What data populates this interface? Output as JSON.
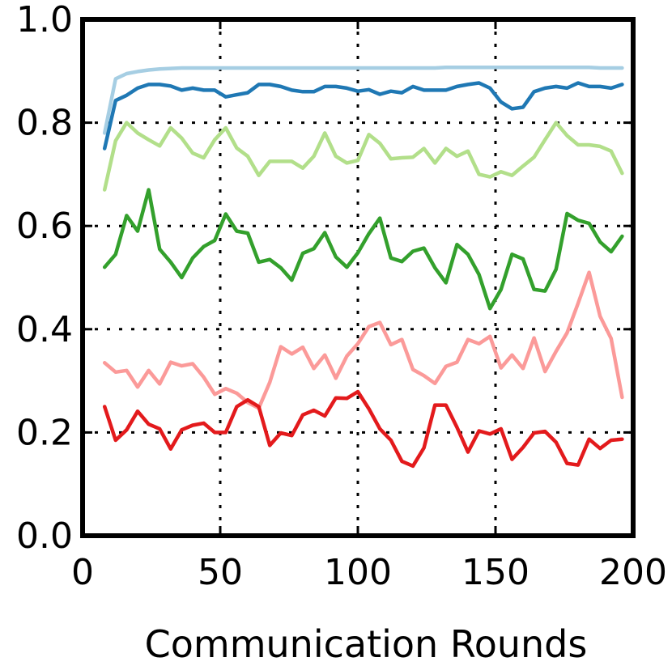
{
  "chart_data": {
    "type": "line",
    "title": "",
    "xlabel": "Communication Rounds",
    "ylabel": "",
    "xlim": [
      0,
      200
    ],
    "ylim": [
      0.0,
      1.0
    ],
    "x_ticks": [
      0,
      50,
      100,
      150,
      200
    ],
    "x_tick_labels": [
      "0",
      "50",
      "100",
      "150",
      "200"
    ],
    "y_ticks": [
      0.0,
      0.2,
      0.4,
      0.6,
      0.8,
      1.0
    ],
    "y_tick_labels": [
      "0.0",
      "0.2",
      "0.4",
      "0.6",
      "0.8",
      "1.0"
    ],
    "grid": true,
    "legend": "none",
    "x": [
      8,
      12,
      16,
      20,
      24,
      28,
      32,
      36,
      40,
      44,
      48,
      52,
      56,
      60,
      64,
      68,
      72,
      76,
      80,
      84,
      88,
      92,
      96,
      100,
      104,
      108,
      112,
      116,
      120,
      124,
      128,
      132,
      136,
      140,
      144,
      148,
      152,
      156,
      160,
      164,
      168,
      172,
      176,
      180,
      184,
      188,
      192,
      196
    ],
    "series": [
      {
        "color": "#a6cee3",
        "values": [
          0.78,
          0.885,
          0.895,
          0.899,
          0.902,
          0.904,
          0.905,
          0.906,
          0.906,
          0.906,
          0.906,
          0.906,
          0.906,
          0.906,
          0.906,
          0.906,
          0.906,
          0.906,
          0.906,
          0.906,
          0.906,
          0.906,
          0.906,
          0.906,
          0.906,
          0.906,
          0.906,
          0.906,
          0.906,
          0.906,
          0.906,
          0.907,
          0.907,
          0.907,
          0.907,
          0.907,
          0.907,
          0.907,
          0.907,
          0.907,
          0.907,
          0.907,
          0.907,
          0.907,
          0.907,
          0.906,
          0.906,
          0.906
        ]
      },
      {
        "color": "#1f78b4",
        "values": [
          0.75,
          0.843,
          0.853,
          0.867,
          0.874,
          0.874,
          0.871,
          0.863,
          0.867,
          0.863,
          0.863,
          0.85,
          0.854,
          0.858,
          0.874,
          0.874,
          0.87,
          0.863,
          0.86,
          0.86,
          0.87,
          0.87,
          0.867,
          0.861,
          0.864,
          0.855,
          0.861,
          0.858,
          0.87,
          0.863,
          0.863,
          0.863,
          0.87,
          0.874,
          0.877,
          0.867,
          0.84,
          0.827,
          0.83,
          0.86,
          0.867,
          0.87,
          0.867,
          0.877,
          0.87,
          0.87,
          0.867,
          0.874
        ]
      },
      {
        "color": "#b2df8a",
        "values": [
          0.67,
          0.765,
          0.8,
          0.78,
          0.767,
          0.755,
          0.79,
          0.77,
          0.741,
          0.732,
          0.767,
          0.79,
          0.751,
          0.735,
          0.698,
          0.725,
          0.725,
          0.725,
          0.712,
          0.735,
          0.78,
          0.735,
          0.722,
          0.727,
          0.777,
          0.76,
          0.73,
          0.732,
          0.733,
          0.75,
          0.722,
          0.75,
          0.735,
          0.745,
          0.7,
          0.695,
          0.705,
          0.698,
          0.716,
          0.733,
          0.767,
          0.8,
          0.775,
          0.757,
          0.757,
          0.754,
          0.745,
          0.702
        ]
      },
      {
        "color": "#33a02c",
        "values": [
          0.52,
          0.545,
          0.62,
          0.59,
          0.67,
          0.555,
          0.53,
          0.5,
          0.538,
          0.56,
          0.572,
          0.623,
          0.59,
          0.586,
          0.53,
          0.535,
          0.519,
          0.495,
          0.547,
          0.556,
          0.587,
          0.54,
          0.52,
          0.548,
          0.585,
          0.615,
          0.538,
          0.531,
          0.551,
          0.557,
          0.519,
          0.49,
          0.564,
          0.545,
          0.506,
          0.44,
          0.477,
          0.545,
          0.536,
          0.477,
          0.474,
          0.516,
          0.624,
          0.611,
          0.605,
          0.569,
          0.55,
          0.58
        ]
      },
      {
        "color": "#fb9a99",
        "values": [
          0.335,
          0.317,
          0.32,
          0.288,
          0.32,
          0.294,
          0.336,
          0.329,
          0.333,
          0.307,
          0.274,
          0.285,
          0.276,
          0.258,
          0.247,
          0.297,
          0.366,
          0.352,
          0.365,
          0.324,
          0.35,
          0.305,
          0.348,
          0.372,
          0.405,
          0.413,
          0.37,
          0.38,
          0.322,
          0.31,
          0.295,
          0.328,
          0.336,
          0.38,
          0.372,
          0.386,
          0.325,
          0.35,
          0.324,
          0.383,
          0.318,
          0.357,
          0.393,
          0.45,
          0.51,
          0.425,
          0.382,
          0.268
        ]
      },
      {
        "color": "#e31a1c",
        "values": [
          0.25,
          0.185,
          0.205,
          0.241,
          0.216,
          0.207,
          0.168,
          0.205,
          0.214,
          0.218,
          0.2,
          0.2,
          0.25,
          0.263,
          0.25,
          0.175,
          0.199,
          0.194,
          0.234,
          0.243,
          0.232,
          0.267,
          0.266,
          0.279,
          0.246,
          0.207,
          0.185,
          0.144,
          0.135,
          0.17,
          0.253,
          0.253,
          0.21,
          0.162,
          0.203,
          0.197,
          0.207,
          0.148,
          0.171,
          0.199,
          0.202,
          0.181,
          0.14,
          0.137,
          0.187,
          0.169,
          0.185,
          0.187
        ]
      }
    ]
  }
}
